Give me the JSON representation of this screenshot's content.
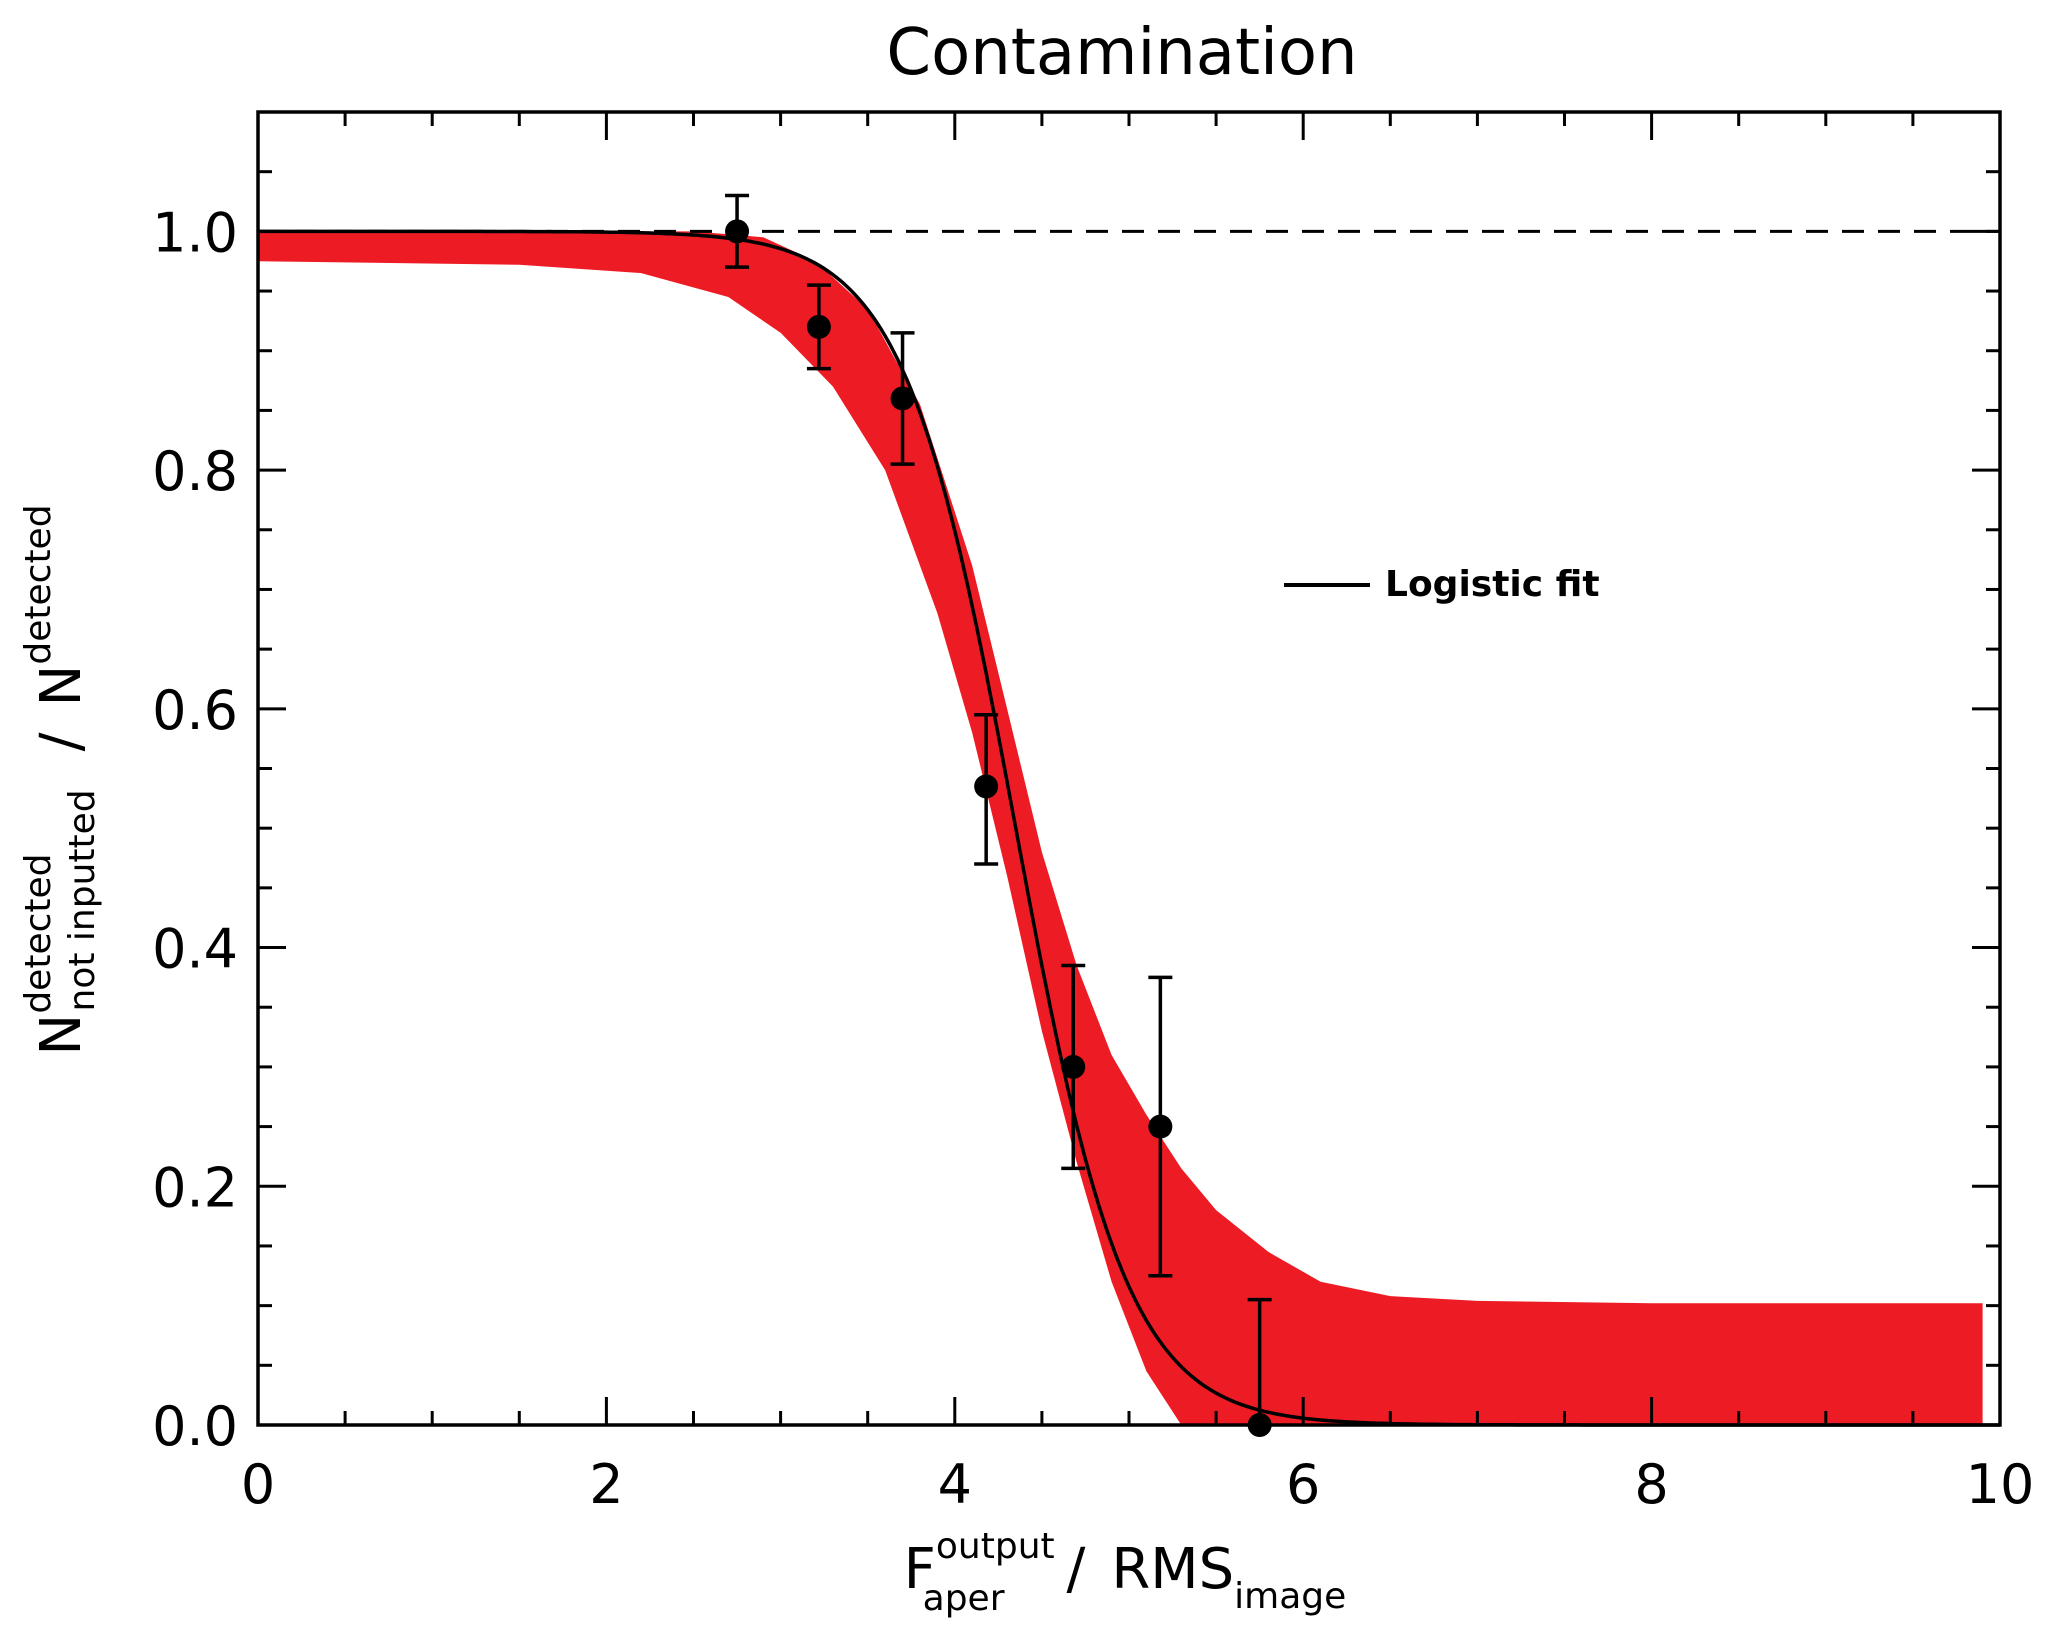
{
  "chart_data": {
    "type": "scatter",
    "title": "Contamination",
    "xlabel": {
      "main": "F",
      "sup": "output",
      "sub": "aper",
      "sep": "/",
      "main2": "RMS",
      "sub2": "image"
    },
    "ylabel": {
      "main": "N",
      "sup": "detected",
      "sub": "not inputted",
      "sep": "/",
      "main2": "N",
      "sup2": "detected"
    },
    "xlim": [
      0,
      10
    ],
    "ylim": [
      0,
      1.1
    ],
    "xticks": [
      0,
      2,
      4,
      6,
      8,
      10
    ],
    "xtick_labels": [
      "0",
      "2",
      "4",
      "6",
      "8",
      "10"
    ],
    "yticks": [
      0.0,
      0.2,
      0.4,
      0.6,
      0.8,
      1.0
    ],
    "ytick_labels": [
      "0.0",
      "0.2",
      "0.4",
      "0.6",
      "0.8",
      "1.0"
    ],
    "reference_line": {
      "y": 1.0,
      "style": "dashed"
    },
    "points": {
      "x": [
        2.75,
        3.22,
        3.7,
        4.18,
        4.68,
        5.18,
        5.75
      ],
      "y": [
        1.0,
        0.92,
        0.86,
        0.535,
        0.3,
        0.25,
        0.0
      ],
      "yerr_low": [
        0.97,
        0.885,
        0.805,
        0.47,
        0.215,
        0.125,
        0.0
      ],
      "yerr_high": [
        1.03,
        0.955,
        0.915,
        0.595,
        0.385,
        0.375,
        0.105
      ]
    },
    "fit": {
      "label": "Logistic fit",
      "model": "logistic",
      "top": 1.0,
      "bottom": 0.0,
      "center": 4.35,
      "width": 0.32
    },
    "band": {
      "upper": {
        "x": [
          0,
          2.0,
          2.5,
          2.9,
          3.2,
          3.5,
          3.8,
          4.1,
          4.3,
          4.5,
          4.7,
          4.9,
          5.1,
          5.3,
          5.5,
          5.8,
          6.1,
          6.5,
          7.0,
          8.0,
          9.9
        ],
        "y": [
          1.0,
          1.0,
          1.0,
          0.995,
          0.975,
          0.935,
          0.855,
          0.72,
          0.6,
          0.48,
          0.385,
          0.31,
          0.26,
          0.215,
          0.18,
          0.145,
          0.12,
          0.108,
          0.104,
          0.102,
          0.102
        ]
      },
      "lower": {
        "x": [
          0,
          1.5,
          2.2,
          2.7,
          3.0,
          3.3,
          3.6,
          3.9,
          4.1,
          4.3,
          4.5,
          4.7,
          4.9,
          5.1,
          5.3,
          5.4,
          9.9
        ],
        "y": [
          0.975,
          0.972,
          0.965,
          0.945,
          0.915,
          0.87,
          0.8,
          0.68,
          0.58,
          0.46,
          0.33,
          0.22,
          0.12,
          0.045,
          0.0,
          0.0,
          0.0
        ]
      },
      "color": "#ed1c24"
    }
  }
}
